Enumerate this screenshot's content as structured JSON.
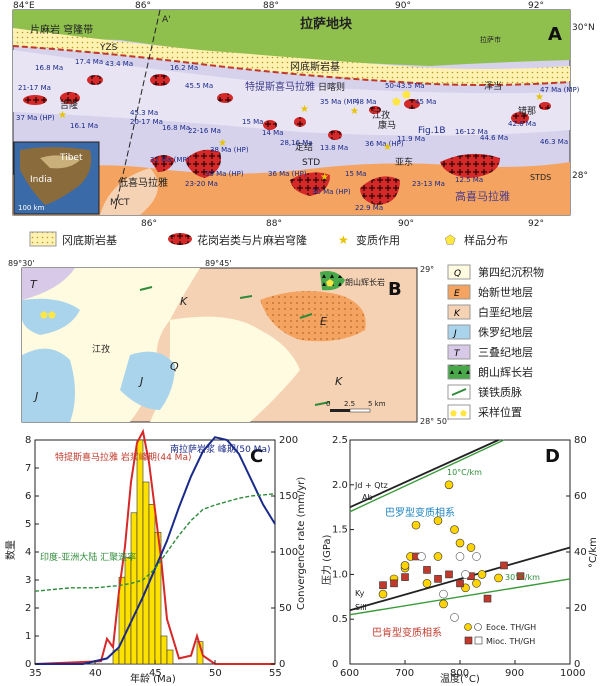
{
  "panel_a": {
    "letter": "A",
    "top_ticks": [
      "84°E",
      "86°",
      "88°",
      "90°",
      "92°"
    ],
    "bottom_ticks": [
      "84°",
      "86°",
      "88°",
      "90°",
      "92°"
    ],
    "lat_right": [
      "30°N",
      "28°"
    ],
    "lat_left": [
      "28°"
    ],
    "regions": {
      "lhasa": "拉萨地块",
      "gangdese": "冈底斯岩基",
      "tethyan": "特提斯喜马拉雅",
      "higher": "高喜马拉雅",
      "lesser": "低喜马拉雅",
      "gneiss_dome": "片麻岩\n穹隆带"
    },
    "labels": {
      "yzs": "YZS",
      "std1": "STD",
      "std2": "STDS",
      "mct": "MCT",
      "aprime": "A'",
      "a": "A",
      "fig1b": "Fig.1B",
      "lhasa_city": "拉萨市",
      "inset_tibet": "Tibet",
      "inset_india": "India",
      "scale": "100 km"
    },
    "places": [
      "吉隆",
      "日喀则",
      "江孜",
      "康马",
      "泽当",
      "定结",
      "亚东",
      "错那"
    ],
    "ages": [
      "16.8 Ma",
      "17.4 Ma",
      "43.4 Ma",
      "16.2 Ma",
      "45.5 Ma",
      "21-17 Ma",
      "37 Ma\n(HP)",
      "16.1 Ma",
      "45.3 Ma",
      "20-17 Ma",
      "16.8 Ma",
      "22-16 Ma",
      "15 Ma",
      "14 Ma",
      "28,16 Ma",
      "35 Ma\n(MP)",
      "50-43.5 Ma",
      "48 Ma",
      "45 Ma",
      "47 Ma\n(MP)",
      "42.6 Ma",
      "44.6 Ma",
      "46.3 Ma",
      "16-12 Ma",
      "13.8 Ma",
      "36 Ma\n(HP)",
      "11.9 Ma",
      "12.5 Ma",
      "32 Ma (MP)",
      "38 Ma\n(HP)",
      "39 Ma\n(HP)",
      "23-20 Ma",
      "36 Ma\n(HP)",
      "30 Ma\n(HP)",
      "15 Ma",
      "22.9 Ma",
      "23-13 Ma"
    ]
  },
  "legend_a": [
    {
      "label": "冈底斯岩基",
      "icon": "dotted-yellow"
    },
    {
      "label": "花岗岩类与片麻岩穹隆",
      "icon": "red-granite"
    },
    {
      "label": "变质作用",
      "icon": "star"
    },
    {
      "label": "样品分布",
      "icon": "pentagon"
    }
  ],
  "panel_b": {
    "letter": "B",
    "coords": [
      "89°30'",
      "89°45'",
      "29°",
      "28°\n50'"
    ],
    "units": [
      "T",
      "K",
      "Q",
      "J",
      "J",
      "E",
      "K",
      "T"
    ],
    "labels": {
      "jiangzi": "江孜",
      "langshan": "朗山辉长岩",
      "scale_0": "0",
      "scale_2": "2.5",
      "scale_5": "5 km"
    }
  },
  "legend_b": [
    {
      "sym": "Q",
      "label": "第四纪沉积物",
      "color": "#fffbe0"
    },
    {
      "sym": "E",
      "label": "始新世地层",
      "color": "#f4a460"
    },
    {
      "sym": "K",
      "label": "白垩纪地层",
      "color": "#f6d2b5"
    },
    {
      "sym": "J",
      "label": "侏罗纪地层",
      "color": "#a9d4ec"
    },
    {
      "sym": "T",
      "label": "三叠纪地层",
      "color": "#d9c9e8"
    },
    {
      "sym": "",
      "label": "朗山辉长岩",
      "color": "#4caf50"
    },
    {
      "sym": "",
      "label": "镁铁质脉",
      "color": "#ffffff"
    },
    {
      "sym": "",
      "label": "采样位置",
      "color": "#ffffff"
    }
  ],
  "panel_c": {
    "letter": "C",
    "chart_data": {
      "type": "bar",
      "xlabel": "年龄 (Ma)",
      "ylabel": "数量",
      "y2label": "Convergence rate (mm/yr)",
      "xlim": [
        35,
        55
      ],
      "ylim": [
        0,
        8
      ],
      "y2lim": [
        0,
        200
      ],
      "xticks": [
        "35",
        "40",
        "45",
        "50",
        "55"
      ],
      "yticks": [
        "0",
        "1",
        "2",
        "3",
        "4",
        "5",
        "6",
        "7",
        "8"
      ],
      "y2ticks": [
        "0",
        "50",
        "100",
        "150",
        "200"
      ],
      "bars": {
        "bin_start": [
          41.5,
          42,
          42.5,
          43,
          43.5,
          44,
          44.5,
          45,
          45.5,
          46,
          48.5
        ],
        "values": [
          0.5,
          3.1,
          3.8,
          5.4,
          8.0,
          6.5,
          5.7,
          4.7,
          1.0,
          0.5,
          0.8
        ]
      },
      "series": [
        {
          "name": "特提斯喜马拉雅岩浆峰期(44 Ma)",
          "kind": "kde-red",
          "x": [
            35,
            40.5,
            41,
            41.5,
            42,
            42.5,
            43,
            43.5,
            44,
            44.5,
            45,
            45.5,
            46,
            47,
            48,
            48.5,
            49,
            50,
            55
          ],
          "y": [
            0,
            0.1,
            0.9,
            0.6,
            2.6,
            4.2,
            6.5,
            7.9,
            8.3,
            7.2,
            5.5,
            3.8,
            1.6,
            0.2,
            0.3,
            1.0,
            0.3,
            0,
            0
          ]
        },
        {
          "name": "南拉萨岩浆峰期(50 Ma)",
          "kind": "kde-blue",
          "x": [
            35,
            37,
            39,
            41,
            42,
            43,
            44,
            45,
            46,
            47,
            48,
            49,
            50,
            51,
            52,
            53,
            54,
            55
          ],
          "y": [
            0,
            0,
            0,
            0.2,
            0.6,
            1.5,
            2.4,
            3.4,
            4.4,
            5.6,
            6.7,
            7.6,
            8.1,
            8.0,
            7.5,
            6.6,
            5.7,
            5.0
          ]
        },
        {
          "name": "印度-亚洲大陆汇聚速率",
          "kind": "convergence-green",
          "x": [
            35,
            38,
            40,
            42,
            43,
            44,
            45,
            46,
            47,
            48,
            49,
            50,
            51,
            52,
            53,
            54,
            55
          ],
          "y": [
            65,
            68,
            68,
            70,
            72,
            75,
            85,
            100,
            115,
            128,
            138,
            142,
            145,
            148,
            150,
            151,
            152
          ]
        }
      ],
      "annotations": {
        "red": "特提斯喜马拉雅\n岩浆峰期(44 Ma)",
        "blue": "南拉萨岩浆\n峰期(50 Ma)",
        "green": "印度-亚洲大陆\n汇聚速率"
      }
    }
  },
  "panel_d": {
    "letter": "D",
    "chart_data": {
      "type": "scatter",
      "xlabel": "温度(°C)",
      "ylabel": "压力 (GPa)",
      "y2label": "°C/km",
      "xlim": [
        600,
        1000
      ],
      "ylim": [
        0,
        2.5
      ],
      "y2lim": [
        0,
        80
      ],
      "xticks": [
        "600",
        "700",
        "800",
        "900",
        "1000"
      ],
      "yticks": [
        "0",
        "0.5",
        "1.0",
        "1.5",
        "2.0",
        "2.5"
      ],
      "y2ticks": [
        "0",
        "20",
        "40",
        "60",
        "80"
      ],
      "lines": {
        "jd_qtz": "Jd + Qtz",
        "ab": "Ab",
        "ky": "Ky",
        "sill": "Sill",
        "g10": "10°C/km",
        "g30": "30°C/km",
        "barrow": "巴罗型变质相系",
        "buchan": "巴肯型变质相系"
      },
      "series": [
        {
          "name": "Eoce. TH/GH",
          "marker": "circle",
          "filled_color": "#ffd400",
          "x": [
            660,
            700,
            710,
            720,
            740,
            760,
            770,
            780,
            790,
            800,
            810,
            820,
            830,
            840,
            870,
            760,
            700,
            680
          ],
          "y": [
            0.78,
            1.07,
            1.2,
            1.55,
            0.9,
            1.2,
            0.67,
            2.0,
            1.5,
            1.35,
            0.85,
            1.3,
            0.9,
            1.0,
            0.96,
            1.6,
            1.1,
            0.95
          ]
        },
        {
          "name": "Mioc. TH/GH",
          "marker": "square",
          "filled_color": "#c0392b",
          "x": [
            660,
            680,
            700,
            720,
            740,
            760,
            780,
            800,
            820,
            850,
            880,
            910
          ],
          "y": [
            0.88,
            0.9,
            0.97,
            1.2,
            1.05,
            0.95,
            1.0,
            0.9,
            0.98,
            0.73,
            1.1,
            0.98
          ]
        },
        {
          "name": "open",
          "marker": "open",
          "x": [
            730,
            790,
            810,
            800,
            830,
            770
          ],
          "y": [
            1.2,
            0.52,
            1.0,
            1.2,
            1.2,
            0.78
          ]
        }
      ],
      "legend": [
        "Eoce. TH/GH",
        "Mioc. TH/GH"
      ]
    }
  }
}
